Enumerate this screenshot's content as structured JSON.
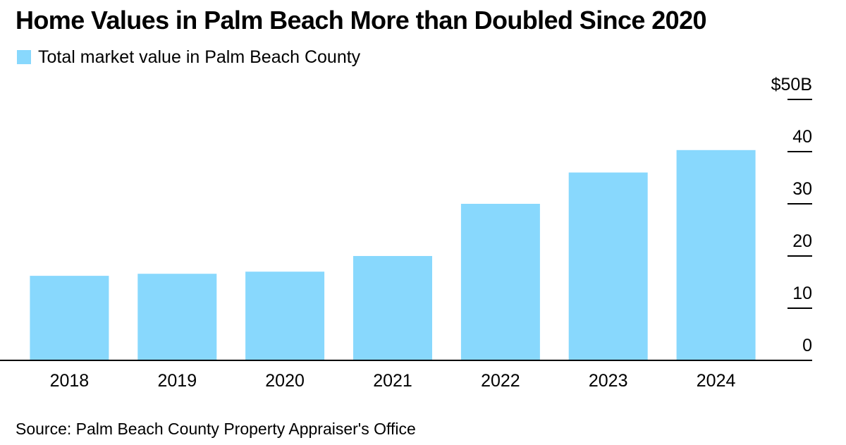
{
  "title": "Home Values in Palm Beach More than Doubled Since 2020",
  "source": "Source: Palm Beach County Property Appraiser's Office",
  "colors": {
    "bar": "#88d8fd",
    "axis": "#000000"
  },
  "chart_data": {
    "type": "bar",
    "title": "Home Values in Palm Beach More than Doubled Since 2020",
    "categories": [
      "2018",
      "2019",
      "2020",
      "2021",
      "2022",
      "2023",
      "2024"
    ],
    "series": [
      {
        "name": "Total market value in Palm Beach County",
        "values": [
          16.2,
          16.6,
          17.0,
          20.0,
          30.0,
          36.0,
          40.3
        ]
      }
    ],
    "ylim": [
      0,
      50
    ],
    "y_ticks": [
      0,
      10,
      20,
      30,
      40,
      50
    ],
    "y_tick_labels": [
      "0",
      "10",
      "20",
      "30",
      "40",
      "$50B"
    ],
    "y_axis_side": "right",
    "legend_position": "top-left",
    "grid": false
  }
}
